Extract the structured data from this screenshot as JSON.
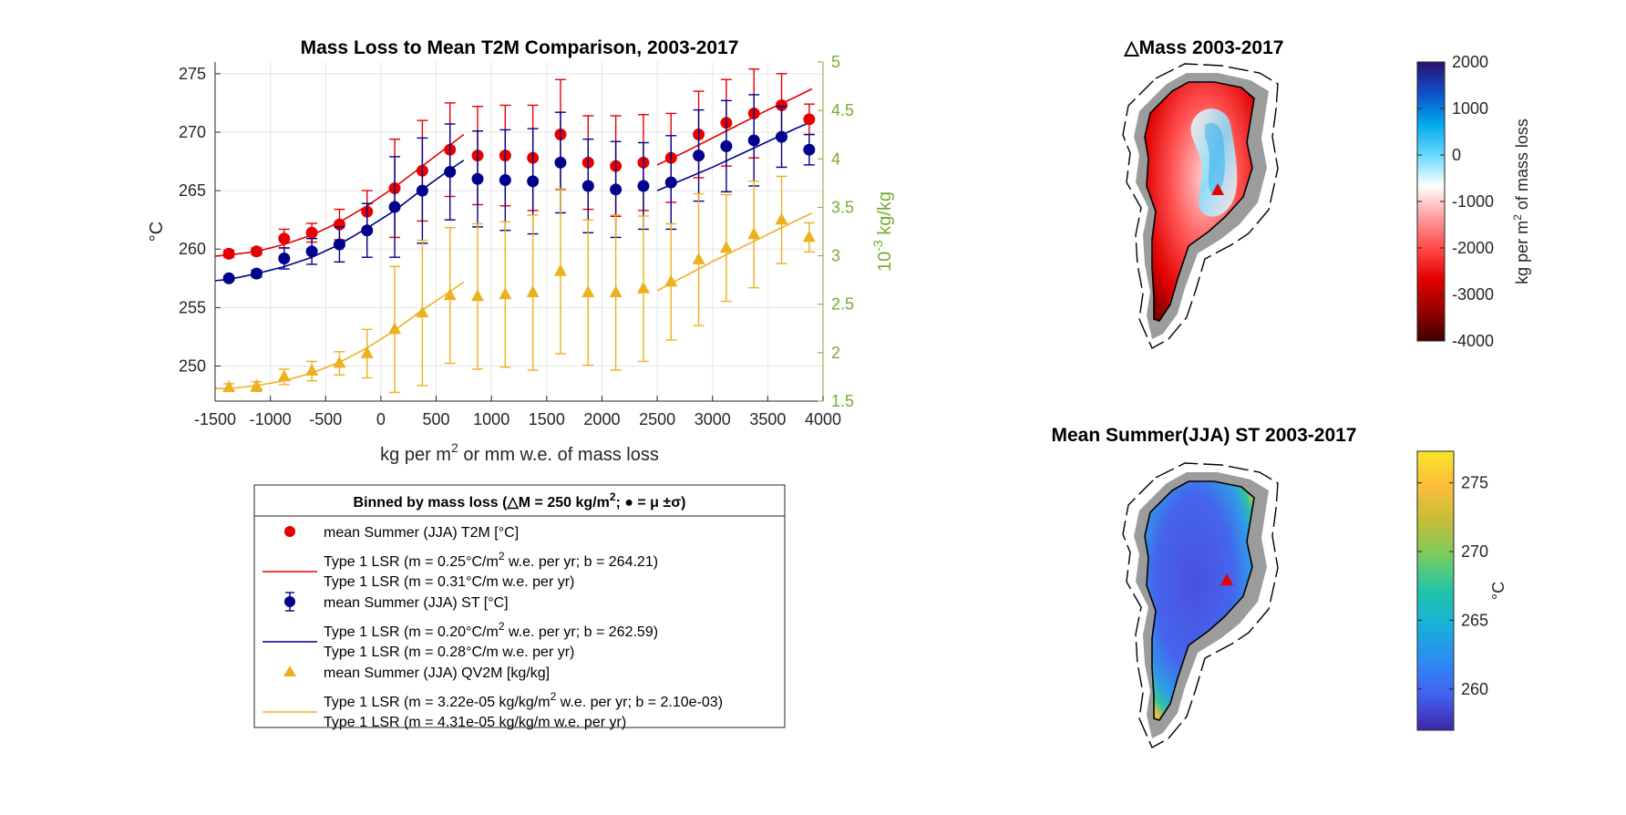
{
  "colors": {
    "t2m": "#e60000",
    "st": "#00008c",
    "qv2m": "#edb120",
    "right_axis": "#77ac30",
    "grid": "#e6e6e6",
    "greenland_mask": "#9c9c9c"
  },
  "chart_data": [
    {
      "type": "scatter",
      "title": "Mass Loss to Mean T2M Comparison, 2003-2017",
      "xlabel": "kg per m",
      "xlabel_sup": "2",
      "xlabel_tail": " or mm w.e. of mass loss",
      "ylabel": "°C",
      "ylabel_right_prefix": "10",
      "ylabel_right_sup": "-3",
      "ylabel_right_tail": " kg/kg",
      "xlim": [
        -1500,
        4000
      ],
      "ylim": [
        247,
        276
      ],
      "ylim_right": [
        1.5,
        5
      ],
      "xticks": [
        -1500,
        -1000,
        -500,
        0,
        500,
        1000,
        1500,
        2000,
        2500,
        3000,
        3500,
        4000
      ],
      "yticks": [
        250,
        255,
        260,
        265,
        270,
        275
      ],
      "yticks_right": [
        1.5,
        2,
        2.5,
        3,
        3.5,
        4,
        4.5,
        5
      ],
      "grid": true,
      "x": [
        -1375,
        -1125,
        -875,
        -625,
        -375,
        -125,
        125,
        375,
        625,
        875,
        1125,
        1375,
        1625,
        1875,
        2125,
        2375,
        2625,
        2875,
        3125,
        3375,
        3625,
        3875
      ],
      "series": [
        {
          "name": "mean Summer (JJA) T2M [°C]",
          "axis": "left",
          "marker": "circle",
          "values": [
            259.6,
            259.8,
            260.9,
            261.4,
            262.1,
            263.2,
            265.2,
            266.7,
            268.5,
            268.0,
            268.0,
            267.8,
            269.8,
            267.4,
            267.1,
            267.4,
            267.8,
            269.8,
            270.8,
            271.6,
            272.3,
            271.1
          ],
          "std": [
            0.3,
            0.3,
            0.8,
            0.8,
            1.3,
            1.8,
            4.2,
            4.3,
            4.0,
            4.2,
            4.3,
            4.5,
            4.7,
            4.0,
            4.3,
            4.1,
            3.8,
            3.7,
            3.7,
            3.8,
            2.7,
            1.3
          ]
        },
        {
          "name": "mean Summer (JJA) ST [°C]",
          "axis": "left",
          "marker": "circle",
          "values": [
            257.5,
            257.9,
            259.2,
            259.8,
            260.4,
            261.6,
            263.6,
            265.0,
            266.6,
            266.0,
            265.9,
            265.8,
            267.4,
            265.4,
            265.1,
            265.4,
            265.7,
            268.0,
            268.8,
            269.3,
            269.6,
            268.5
          ],
          "std": [
            0.2,
            0.3,
            0.9,
            1.1,
            1.5,
            2.3,
            4.3,
            4.5,
            4.1,
            4.1,
            4.3,
            4.5,
            4.3,
            4.0,
            4.1,
            3.7,
            4.0,
            3.9,
            3.9,
            3.9,
            2.6,
            1.3
          ]
        },
        {
          "name": "mean Summer (JJA) QV2M [kg/kg]",
          "axis": "right",
          "marker": "triangle",
          "values": [
            1.64,
            1.65,
            1.75,
            1.81,
            1.89,
            1.99,
            2.24,
            2.41,
            2.59,
            2.58,
            2.6,
            2.62,
            2.84,
            2.62,
            2.62,
            2.66,
            2.73,
            2.96,
            3.08,
            3.22,
            3.37,
            3.19
          ],
          "std": [
            0.04,
            0.05,
            0.08,
            0.1,
            0.12,
            0.25,
            0.65,
            0.75,
            0.7,
            0.75,
            0.75,
            0.8,
            0.85,
            0.75,
            0.8,
            0.75,
            0.6,
            0.68,
            0.55,
            0.55,
            0.45,
            0.15
          ]
        }
      ],
      "fits": [
        {
          "series": "t2m",
          "segments": [
            {
              "x": [
                -1500,
                -1375,
                -1125,
                -875,
                -625,
                -375,
                -125,
                125,
                375,
                625,
                750
              ],
              "y": [
                259.4,
                259.5,
                259.8,
                260.4,
                261.2,
                262.3,
                263.7,
                265.3,
                267.1,
                268.9,
                269.8
              ]
            },
            {
              "x": [
                2500,
                2750,
                3000,
                3250,
                3500,
                3750,
                3900
              ],
              "y": [
                267.2,
                268.3,
                269.5,
                270.7,
                271.9,
                273.0,
                273.7
              ]
            }
          ]
        },
        {
          "series": "st",
          "segments": [
            {
              "x": [
                -1500,
                -1375,
                -1125,
                -875,
                -625,
                -375,
                -125,
                125,
                375,
                625,
                750
              ],
              "y": [
                257.3,
                257.4,
                257.9,
                258.5,
                259.3,
                260.4,
                261.8,
                263.3,
                265.1,
                266.8,
                267.6
              ]
            },
            {
              "x": [
                2500,
                2750,
                3000,
                3250,
                3500,
                3750,
                3900
              ],
              "y": [
                265.0,
                266.0,
                267.0,
                268.1,
                269.2,
                270.3,
                270.9
              ]
            }
          ]
        },
        {
          "series": "qv2m",
          "segments": [
            {
              "x": [
                -1500,
                -1375,
                -1125,
                -875,
                -625,
                -375,
                -125,
                125,
                375,
                625,
                750
              ],
              "y": [
                1.63,
                1.63,
                1.66,
                1.71,
                1.79,
                1.9,
                2.05,
                2.23,
                2.44,
                2.63,
                2.73
              ]
            },
            {
              "x": [
                2500,
                2750,
                3000,
                3250,
                3500,
                3750,
                3900
              ],
              "y": [
                2.64,
                2.79,
                2.94,
                3.08,
                3.22,
                3.36,
                3.44
              ]
            }
          ]
        }
      ],
      "legend": {
        "title_prefix": "Binned by mass loss (",
        "title_delta": "△",
        "title_mid": "M = 250 kg/m",
        "title_sup": "2",
        "title_tail": "; ● = μ ±σ)",
        "entries": [
          {
            "marker": "circle",
            "color_key": "t2m",
            "label": "mean Summer (JJA) T2M [°C]"
          },
          {
            "marker": "line",
            "color_key": "t2m",
            "label": "Type 1 LSR (m = 0.25°C/m",
            "sup": "2",
            "tail": " w.e. per yr; b = 264.21)",
            "label2": "Type 1 LSR (m = 0.31°C/m w.e. per yr)"
          },
          {
            "marker": "errcircle",
            "color_key": "st",
            "label": "mean Summer (JJA) ST [°C]"
          },
          {
            "marker": "line",
            "color_key": "st",
            "label": "Type 1 LSR (m = 0.20°C/m",
            "sup": "2",
            "tail": " w.e. per yr; b = 262.59)",
            "label2": "Type 1 LSR (m = 0.28°C/m w.e. per yr)"
          },
          {
            "marker": "triangle",
            "color_key": "qv2m",
            "label": "mean Summer (JJA) QV2M [kg/kg]"
          },
          {
            "marker": "line",
            "color_key": "qv2m",
            "label": "Type 1 LSR (m = 3.22e-05 kg/kg/m",
            "sup": "2",
            "tail": " w.e. per yr; b = 2.10e-03)",
            "label2": "Type 1 LSR (m = 4.31e-05 kg/kg/m w.e. per yr)"
          }
        ]
      }
    },
    {
      "type": "heatmap",
      "title_delta": "△",
      "title": "Mass 2003-2017",
      "colorbar_ticks": [
        2000,
        1000,
        0,
        -1000,
        -2000,
        -3000,
        -4000
      ],
      "colorbar_range": [
        -4000,
        2000
      ],
      "colorbar_label_prefix": "kg per m",
      "colorbar_label_sup": "2",
      "colorbar_label_tail": " of mass loss",
      "colormap": [
        "#3f0000",
        "#9a0000",
        "#e40000",
        "#ff4a4a",
        "#ff9e9e",
        "#ffffff",
        "#66d8ff",
        "#00a8ec",
        "#1050c8",
        "#2a1070"
      ]
    },
    {
      "type": "heatmap",
      "title": "Mean Summer(JJA) ST 2003-2017",
      "colorbar_ticks": [
        275,
        270,
        265,
        260
      ],
      "colorbar_range": [
        257,
        277.3
      ],
      "colorbar_label": "°C",
      "colormap": [
        "#3e26a8",
        "#4361f0",
        "#2c8cf2",
        "#18b0d9",
        "#21c4a8",
        "#76cc60",
        "#c6bd38",
        "#fbbd3b",
        "#f9e528"
      ]
    }
  ]
}
